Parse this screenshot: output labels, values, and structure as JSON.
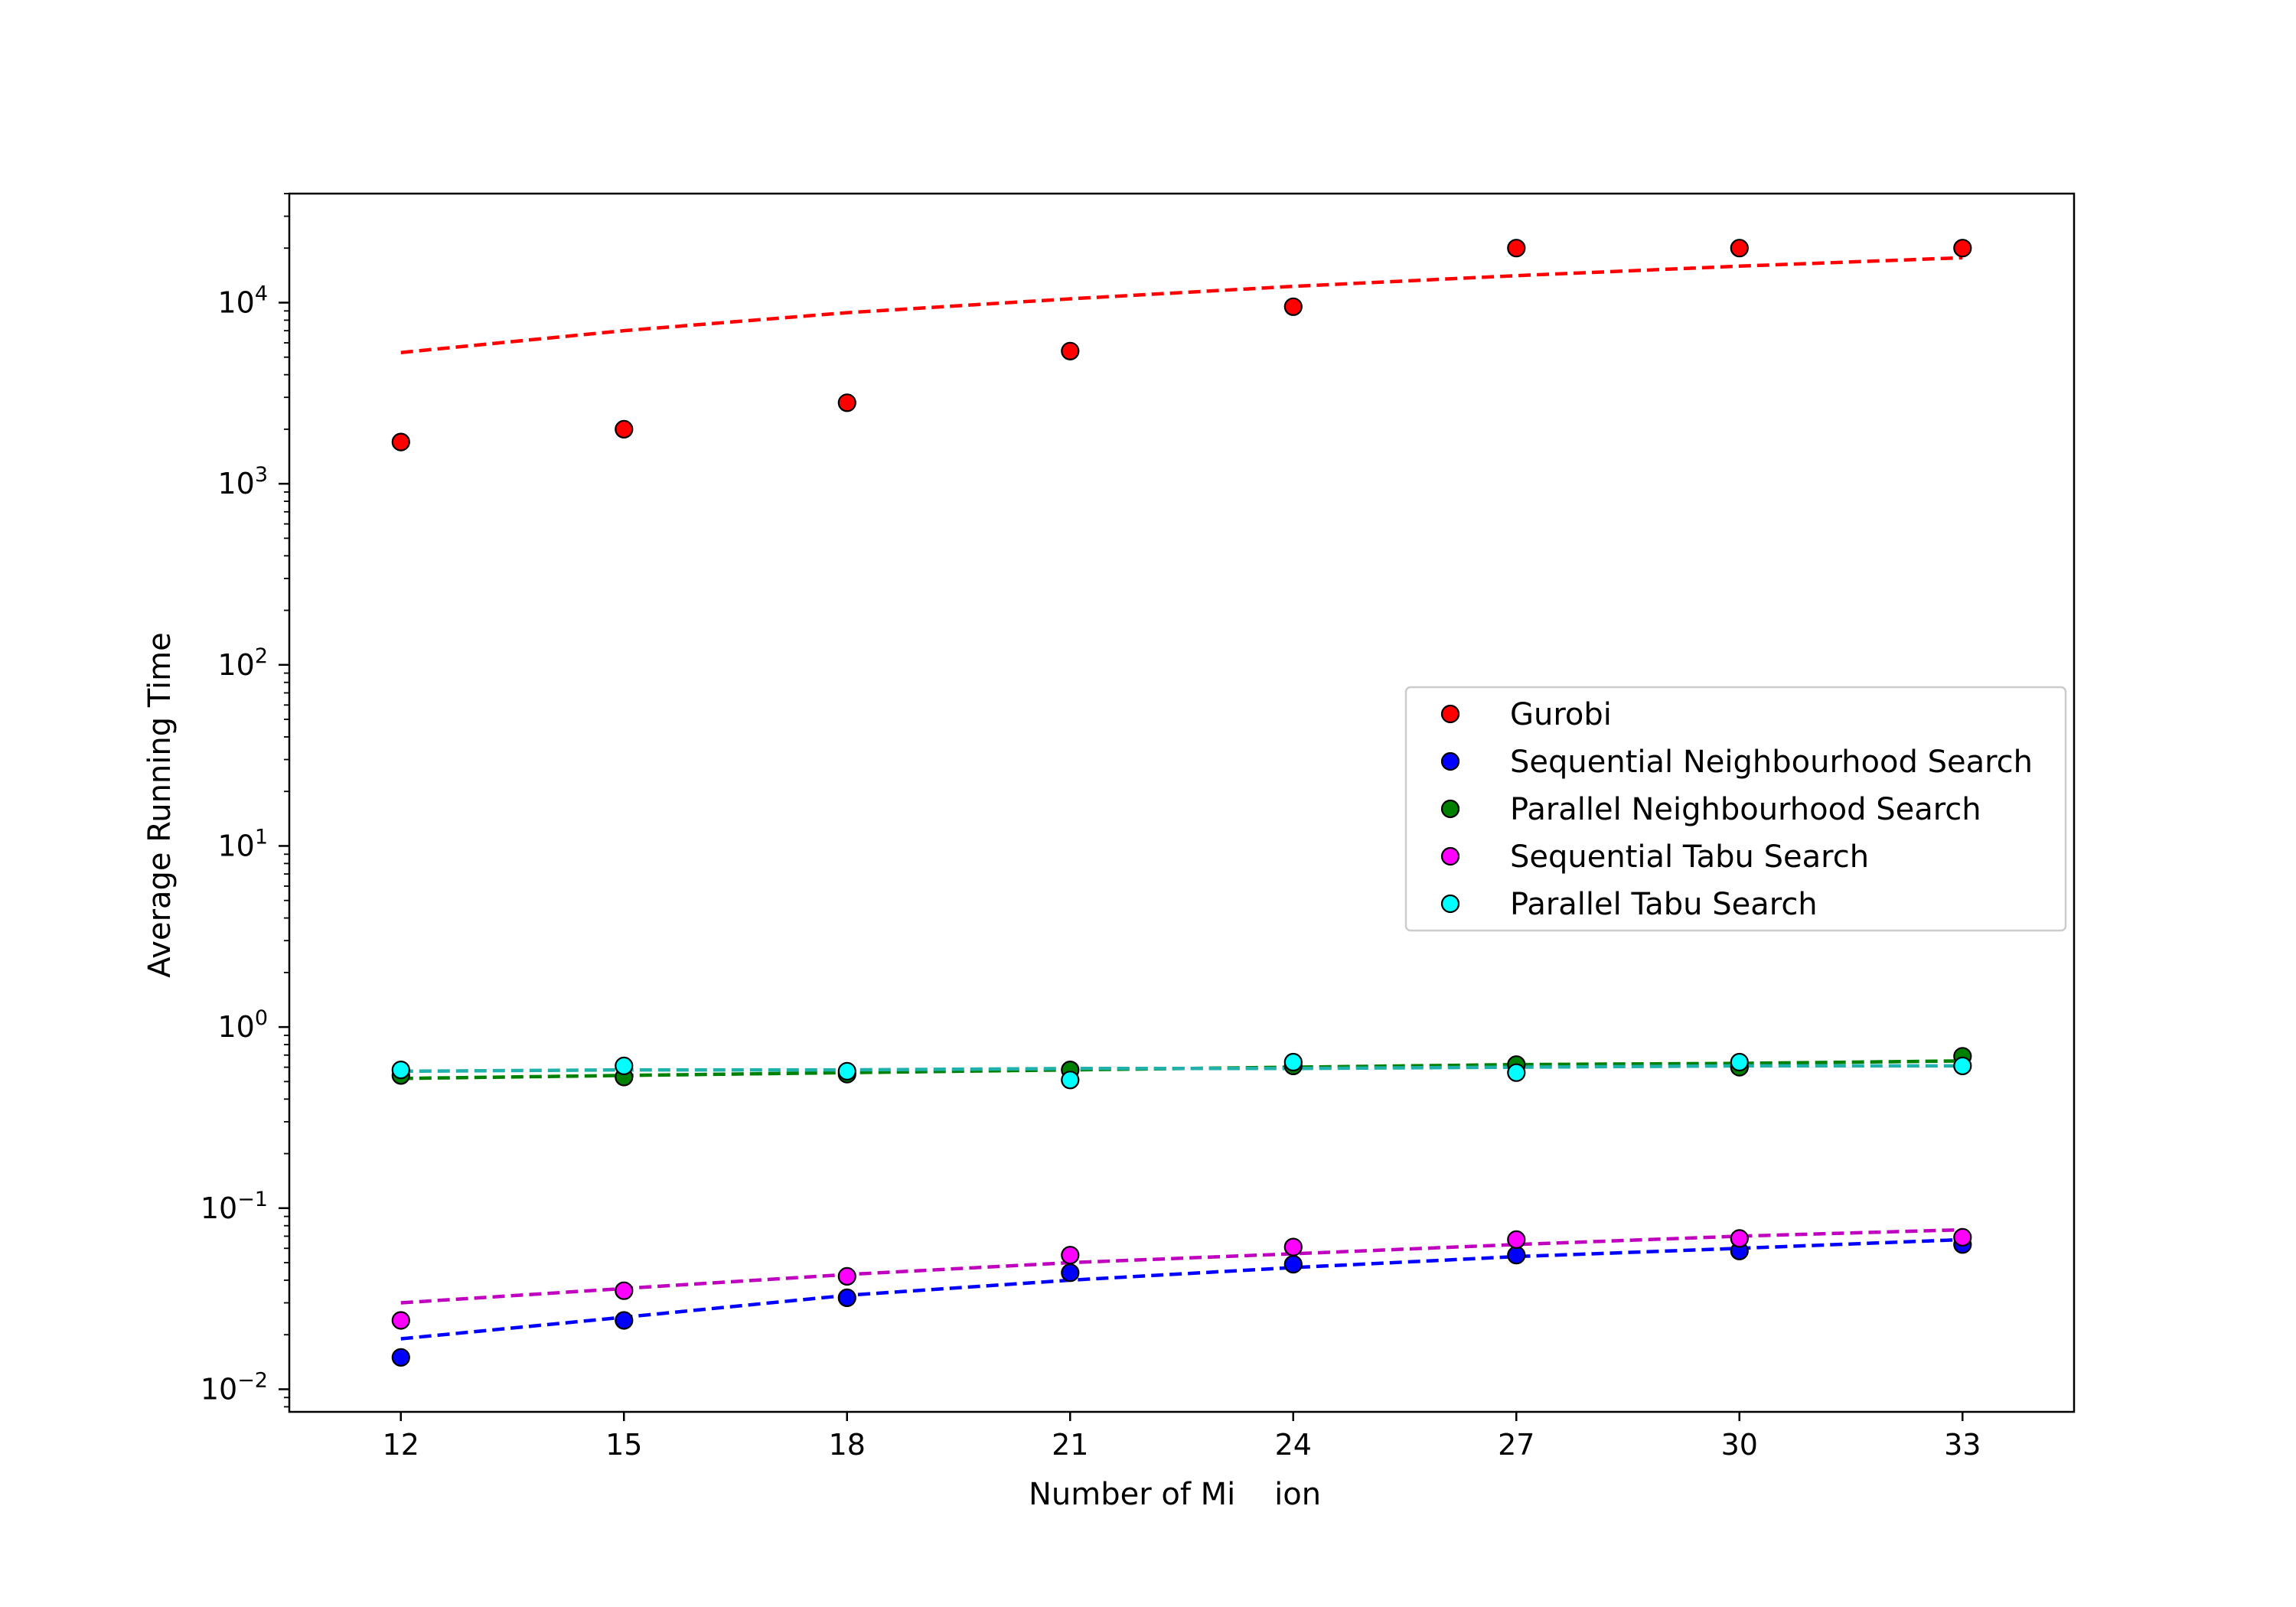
{
  "chart_data": {
    "type": "scatter",
    "title": "",
    "xlabel": "Number of Mi    ion",
    "ylabel": "Average Running Time",
    "x": [
      12,
      15,
      18,
      21,
      24,
      27,
      30,
      33
    ],
    "x_ticks": [
      "12",
      "15",
      "18",
      "21",
      "24",
      "27",
      "30",
      "33"
    ],
    "xlim": [
      10.5,
      34.5
    ],
    "y_scale": "log",
    "ylim": [
      0.0075,
      40000
    ],
    "y_ticks": [
      {
        "value": 0.01,
        "base": "10",
        "exp": "−2"
      },
      {
        "value": 0.1,
        "base": "10",
        "exp": "−1"
      },
      {
        "value": 1,
        "base": "10",
        "exp": "0"
      },
      {
        "value": 10,
        "base": "10",
        "exp": "1"
      },
      {
        "value": 100,
        "base": "10",
        "exp": "2"
      },
      {
        "value": 1000,
        "base": "10",
        "exp": "3"
      },
      {
        "value": 10000,
        "base": "10",
        "exp": "4"
      }
    ],
    "grid": false,
    "legend_position": "center-right",
    "series": [
      {
        "name": "Gurobi",
        "color": "#ff0000",
        "line_color": "#ff0000",
        "values": [
          1700,
          2000,
          2800,
          5400,
          9500,
          20000,
          20000,
          20000
        ],
        "trend": [
          5300,
          7000,
          8800,
          10500,
          12300,
          14100,
          15900,
          17700
        ]
      },
      {
        "name": "Sequential Neighbourhood Search",
        "color": "#0000ff",
        "line_color": "#0000ff",
        "values": [
          0.015,
          0.024,
          0.032,
          0.044,
          0.049,
          0.055,
          0.058,
          0.063
        ],
        "trend": [
          0.019,
          0.025,
          0.033,
          0.04,
          0.047,
          0.054,
          0.06,
          0.067
        ]
      },
      {
        "name": "Parallel Neighbourhood Search",
        "color": "#008000",
        "line_color": "#008000",
        "values": [
          0.54,
          0.53,
          0.55,
          0.58,
          0.61,
          0.62,
          0.6,
          0.69
        ],
        "trend": [
          0.52,
          0.54,
          0.56,
          0.58,
          0.6,
          0.62,
          0.63,
          0.65
        ]
      },
      {
        "name": "Sequential Tabu Search",
        "color": "#ff00ff",
        "line_color": "#bf00bf",
        "values": [
          0.024,
          0.035,
          0.042,
          0.055,
          0.061,
          0.067,
          0.068,
          0.069
        ],
        "trend": [
          0.03,
          0.036,
          0.043,
          0.05,
          0.056,
          0.063,
          0.07,
          0.076
        ]
      },
      {
        "name": "Parallel Tabu Search",
        "color": "#00ffff",
        "line_color": "#20b2aa",
        "values": [
          0.58,
          0.61,
          0.57,
          0.51,
          0.64,
          0.56,
          0.64,
          0.61
        ],
        "trend": [
          0.57,
          0.58,
          0.58,
          0.59,
          0.59,
          0.6,
          0.61,
          0.61
        ]
      }
    ]
  }
}
